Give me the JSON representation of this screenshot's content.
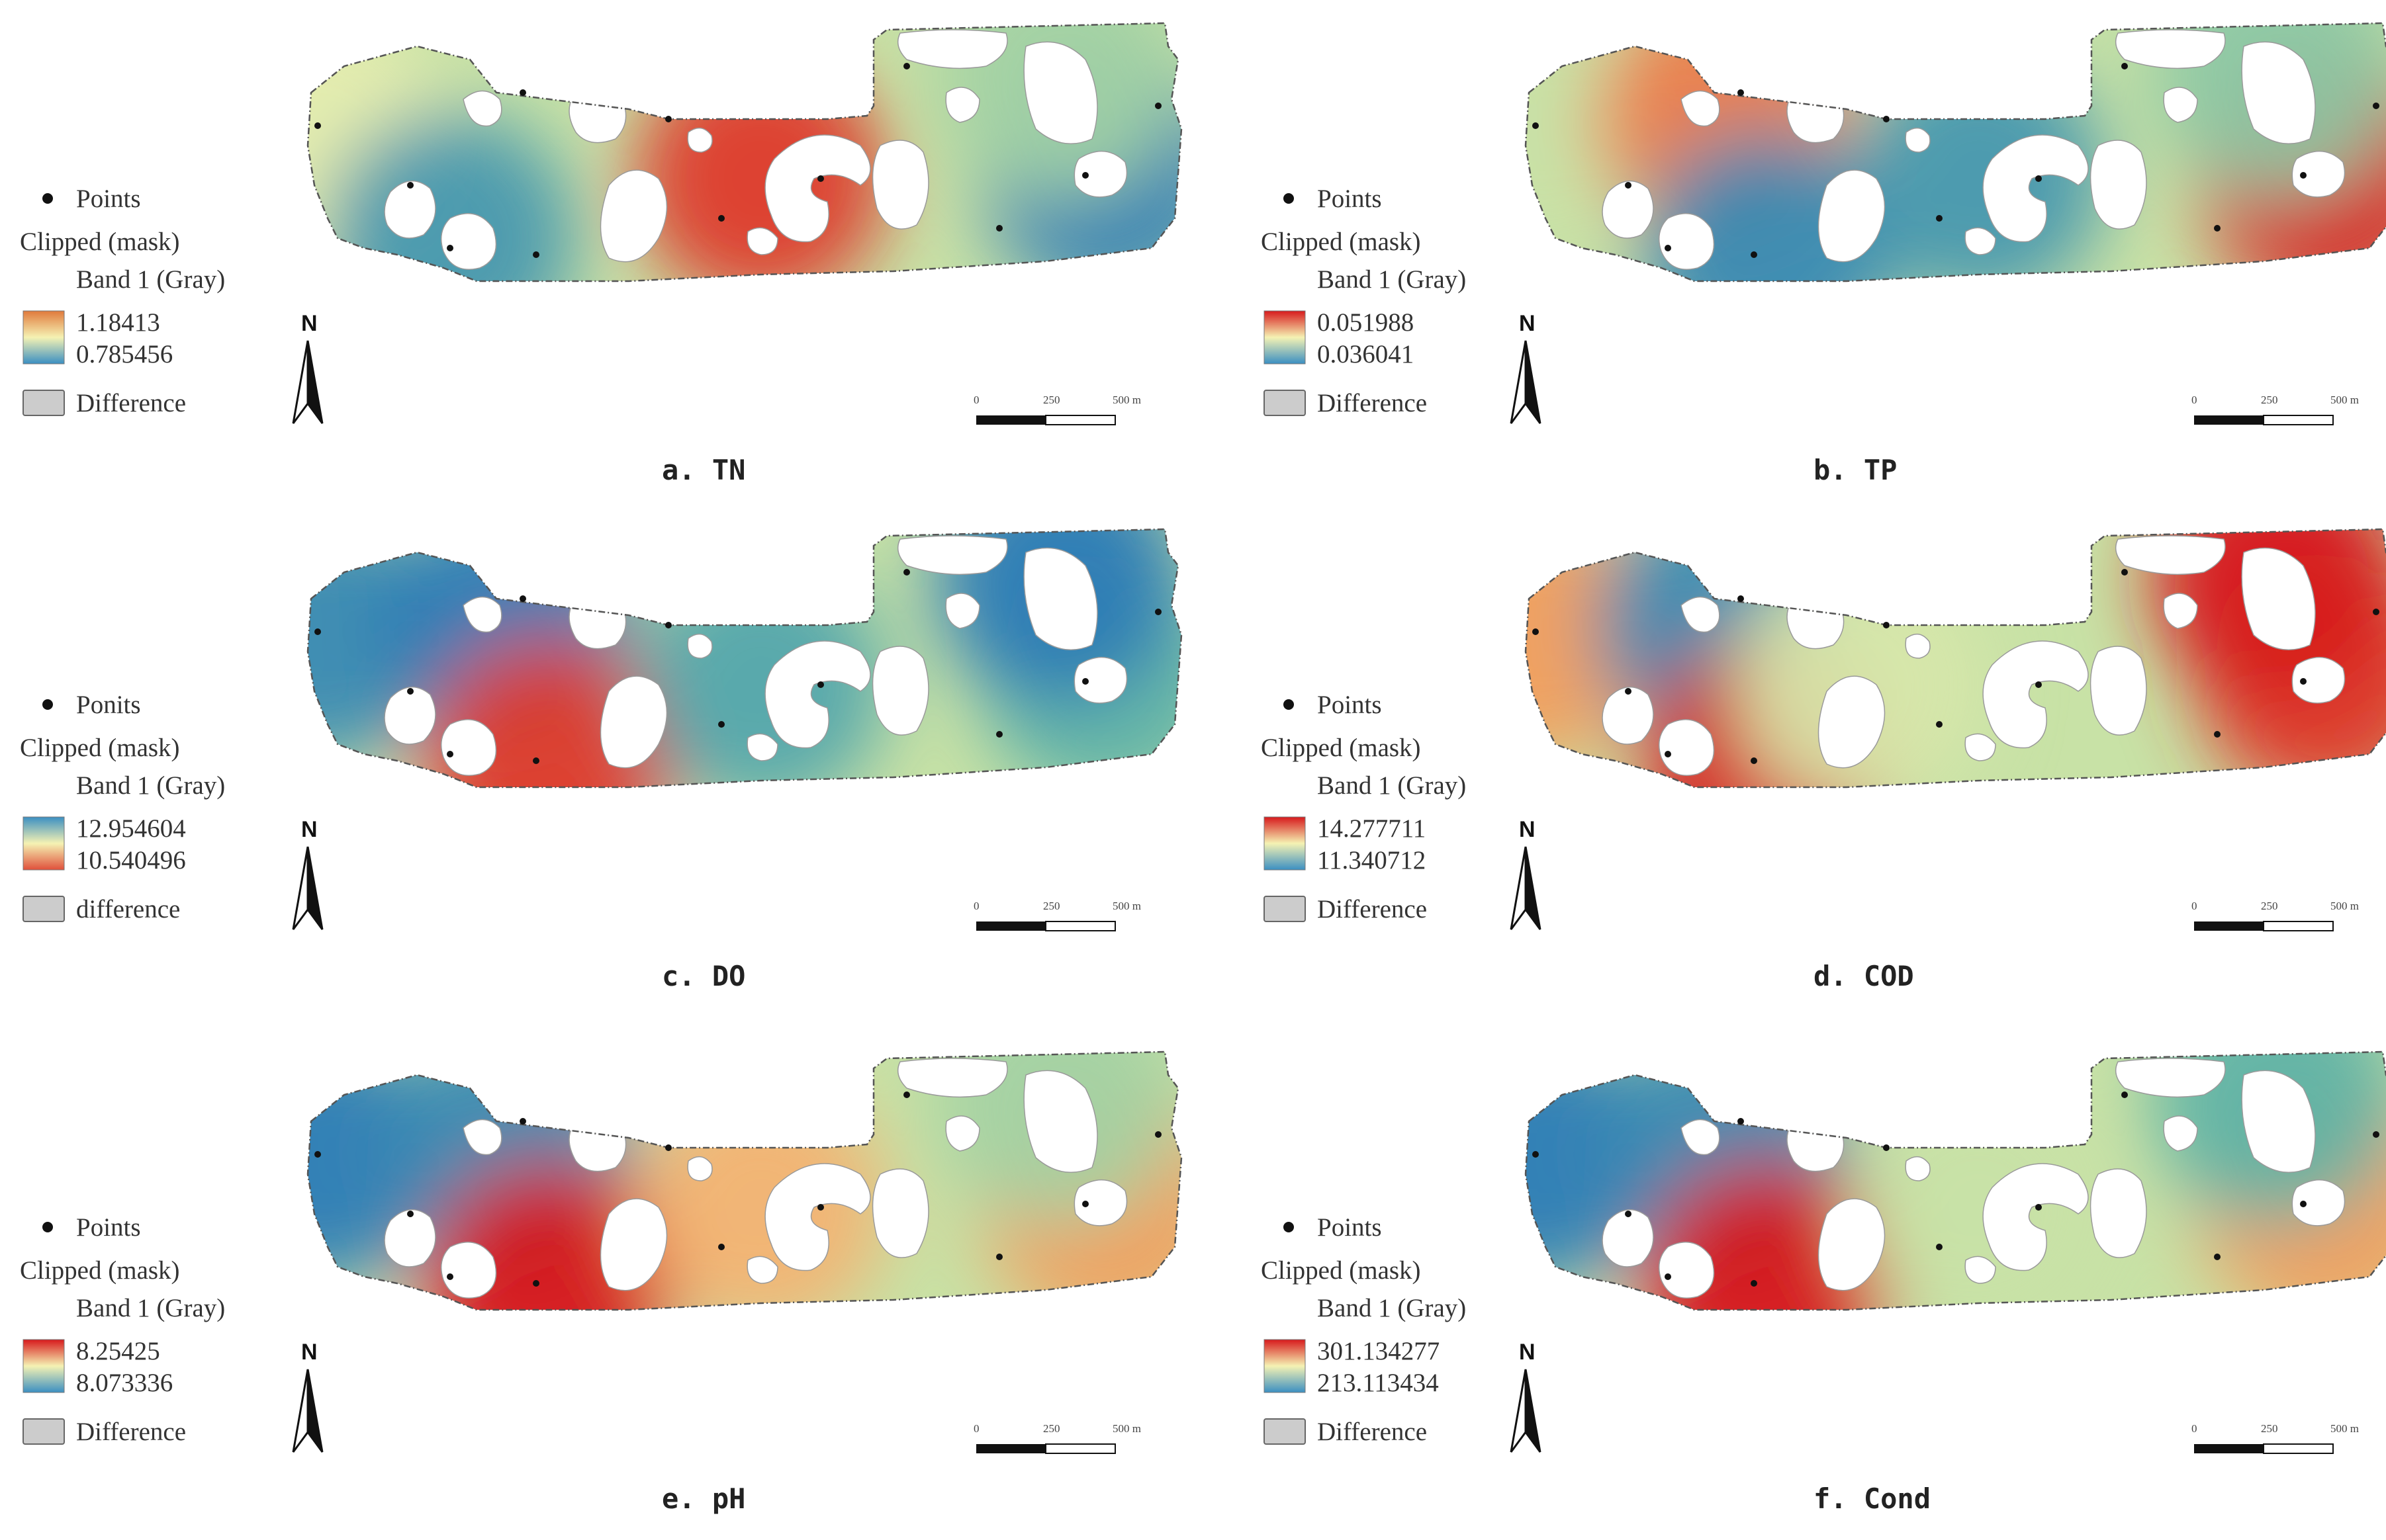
{
  "colors": {
    "blue": "#2c7bb6",
    "cyan": "#5fb3a8",
    "light_green": "#b9dca2",
    "yellow": "#f5f2b3",
    "orange": "#f29d5c",
    "red": "#d7191c",
    "frame": "#555555",
    "hole": "#ffffff",
    "point": "#111111"
  },
  "panels": [
    {
      "caption": "a.  TN",
      "legend": {
        "points_label": "Points",
        "layer_label": "Clipped (mask)",
        "band_label": "Band 1 (Gray)",
        "high_value": "1.18413",
        "low_value": "0.785456",
        "difference_label": "Difference",
        "high_color": "#e07a3c",
        "low_color": "#3b8fc2"
      },
      "scale_labels": [
        "0",
        "250",
        "500 m"
      ]
    },
    {
      "caption": "b.  TP",
      "legend": {
        "points_label": "Points",
        "layer_label": "Clipped (mask)",
        "band_label": "Band 1 (Gray)",
        "high_value": "0.051988",
        "low_value": "0.036041",
        "difference_label": "Difference",
        "high_color": "#d7191c",
        "low_color": "#3b8fc2"
      },
      "scale_labels": [
        "0",
        "250",
        "500 m"
      ]
    },
    {
      "caption": "c.  DO",
      "legend": {
        "points_label": "Ponits",
        "layer_label": "Clipped (mask)",
        "band_label": "Band 1 (Gray)",
        "high_value": "12.954604",
        "low_value": "10.540496",
        "difference_label": "difference",
        "high_color": "#3b8fc2",
        "low_color": "#e0503a"
      },
      "scale_labels": [
        "0",
        "250",
        "500 m"
      ]
    },
    {
      "caption": "d.  COD",
      "legend": {
        "points_label": "Points",
        "layer_label": "Clipped (mask)",
        "band_label": "Band 1 (Gray)",
        "high_value": "14.277711",
        "low_value": "11.340712",
        "difference_label": "Difference",
        "high_color": "#d7191c",
        "low_color": "#3b8fc2"
      },
      "scale_labels": [
        "0",
        "250",
        "500 m"
      ]
    },
    {
      "caption": "e.  pH",
      "legend": {
        "points_label": "Points",
        "layer_label": "Clipped (mask)",
        "band_label": "Band 1 (Gray)",
        "high_value": "8.25425",
        "low_value": "8.073336",
        "difference_label": "Difference",
        "high_color": "#d7191c",
        "low_color": "#3b8fc2"
      },
      "scale_labels": [
        "0",
        "250",
        "500 m"
      ]
    },
    {
      "caption": "f.  Cond",
      "legend": {
        "points_label": "Points",
        "layer_label": "Clipped (mask)",
        "band_label": "Band 1 (Gray)",
        "high_value": "301.134277",
        "low_value": "213.113434",
        "difference_label": "Difference",
        "high_color": "#d7191c",
        "low_color": "#3b8fc2"
      },
      "scale_labels": [
        "0",
        "250",
        "500 m"
      ]
    }
  ],
  "north_label": "N",
  "hotspots": [
    [
      {
        "level": 0.55,
        "at": "left-edge"
      },
      {
        "level": 0.1,
        "at": "southwest-center"
      },
      {
        "level": 0.95,
        "at": "center-right"
      },
      {
        "level": 0.02,
        "at": "east"
      },
      {
        "level": 0.35,
        "at": "northeast"
      }
    ],
    [
      {
        "level": 0.45,
        "at": "left-edge"
      },
      {
        "level": 0.85,
        "at": "north-center"
      },
      {
        "level": 0.05,
        "at": "south-center"
      },
      {
        "level": 0.1,
        "at": "center-right"
      },
      {
        "level": 1.0,
        "at": "east"
      },
      {
        "level": 0.3,
        "at": "northeast"
      }
    ],
    [
      {
        "level": 0.05,
        "at": "left-edge"
      },
      {
        "level": 0.0,
        "at": "north-center"
      },
      {
        "level": 0.95,
        "at": "south-center"
      },
      {
        "level": 0.15,
        "at": "center-right"
      },
      {
        "level": 0.2,
        "at": "east"
      },
      {
        "level": 0.0,
        "at": "northeast"
      }
    ],
    [
      {
        "level": 0.8,
        "at": "left-edge"
      },
      {
        "level": 0.05,
        "at": "north-center"
      },
      {
        "level": 1.0,
        "at": "south-center"
      },
      {
        "level": 0.5,
        "at": "center"
      },
      {
        "level": 0.95,
        "at": "east"
      },
      {
        "level": 1.0,
        "at": "northeast"
      }
    ],
    [
      {
        "level": 0.0,
        "at": "left-edge"
      },
      {
        "level": 0.05,
        "at": "north-center"
      },
      {
        "level": 1.0,
        "at": "south-center"
      },
      {
        "level": 0.75,
        "at": "center-right"
      },
      {
        "level": 0.8,
        "at": "east"
      },
      {
        "level": 0.35,
        "at": "northeast"
      }
    ],
    [
      {
        "level": 0.0,
        "at": "left-edge"
      },
      {
        "level": 0.05,
        "at": "north-center"
      },
      {
        "level": 1.0,
        "at": "south-center"
      },
      {
        "level": 0.45,
        "at": "center-right"
      },
      {
        "level": 0.8,
        "at": "east"
      },
      {
        "level": 0.2,
        "at": "northeast"
      }
    ]
  ]
}
